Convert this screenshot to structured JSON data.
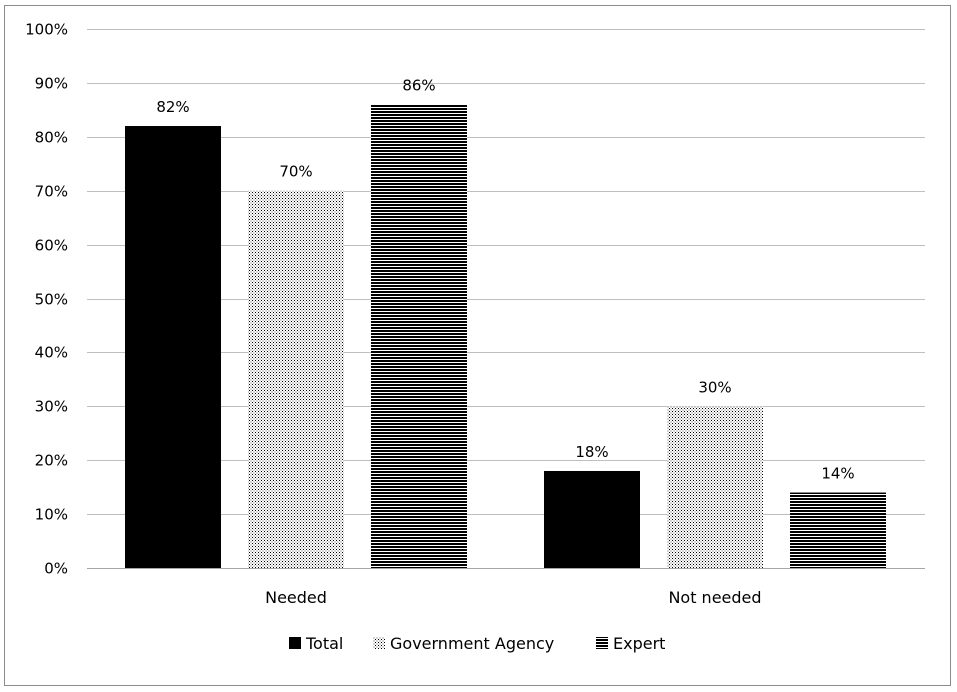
{
  "chart_data": {
    "type": "bar",
    "categories": [
      "Needed",
      "Not needed"
    ],
    "series": [
      {
        "name": "Total",
        "values": [
          82,
          18
        ],
        "pattern": "solid",
        "color": "#000000"
      },
      {
        "name": "Government Agency",
        "values": [
          70,
          30
        ],
        "pattern": "dots",
        "color": "#000000"
      },
      {
        "name": "Expert",
        "values": [
          86,
          14
        ],
        "pattern": "hlines",
        "color": "#000000"
      }
    ],
    "data_labels": [
      [
        "82%",
        "18%"
      ],
      [
        "70%",
        "30%"
      ],
      [
        "86%",
        "14%"
      ]
    ],
    "y_ticks": [
      "0%",
      "10%",
      "20%",
      "30%",
      "40%",
      "50%",
      "60%",
      "70%",
      "80%",
      "90%",
      "100%"
    ],
    "ylim": [
      0,
      100
    ],
    "grid": true,
    "legend_position": "bottom-center",
    "title": "",
    "xlabel": "",
    "ylabel": ""
  }
}
